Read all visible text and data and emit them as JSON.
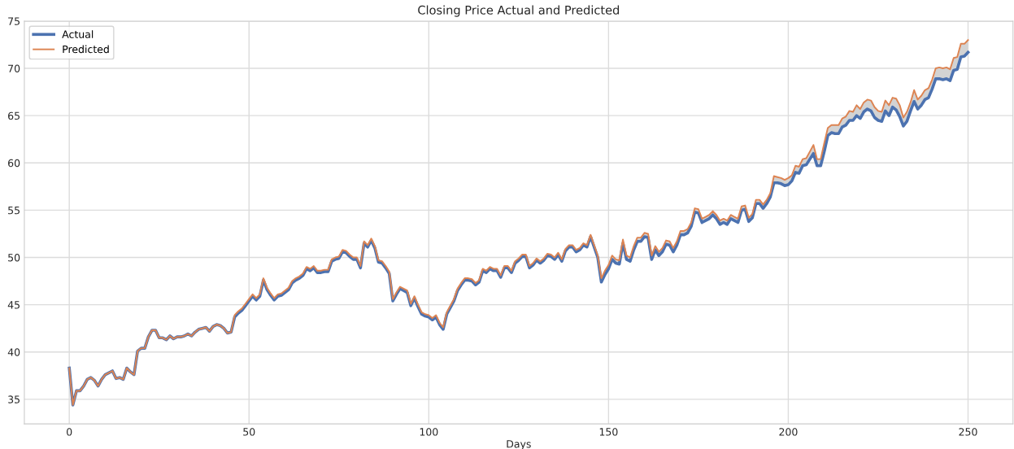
{
  "chart_data": {
    "type": "line",
    "title": "Closing Price Actual and Predicted",
    "xlabel": "Days",
    "x": [
      0,
      1,
      2,
      3,
      4,
      5,
      6,
      7,
      8,
      9,
      10,
      11,
      12,
      13,
      14,
      15,
      16,
      17,
      18,
      19,
      20,
      21,
      22,
      23,
      24,
      25,
      26,
      27,
      28,
      29,
      30,
      31,
      32,
      33,
      34,
      35,
      36,
      37,
      38,
      39,
      40,
      41,
      42,
      43,
      44,
      45,
      46,
      47,
      48,
      49,
      50,
      51,
      52,
      53,
      54,
      55,
      56,
      57,
      58,
      59,
      60,
      61,
      62,
      63,
      64,
      65,
      66,
      67,
      68,
      69,
      70,
      71,
      72,
      73,
      74,
      75,
      76,
      77,
      78,
      79,
      80,
      81,
      82,
      83,
      84,
      85,
      86,
      87,
      88,
      89,
      90,
      91,
      92,
      93,
      94,
      95,
      96,
      97,
      98,
      99,
      100,
      101,
      102,
      103,
      104,
      105,
      106,
      107,
      108,
      109,
      110,
      111,
      112,
      113,
      114,
      115,
      116,
      117,
      118,
      119,
      120,
      121,
      122,
      123,
      124,
      125,
      126,
      127,
      128,
      129,
      130,
      131,
      132,
      133,
      134,
      135,
      136,
      137,
      138,
      139,
      140,
      141,
      142,
      143,
      144,
      145,
      146,
      147,
      148,
      149,
      150,
      151,
      152,
      153,
      154,
      155,
      156,
      157,
      158,
      159,
      160,
      161,
      162,
      163,
      164,
      165,
      166,
      167,
      168,
      169,
      170,
      171,
      172,
      173,
      174,
      175,
      176,
      177,
      178,
      179,
      180,
      181,
      182,
      183,
      184,
      185,
      186,
      187,
      188,
      189,
      190,
      191,
      192,
      193,
      194,
      195,
      196,
      197,
      198,
      199,
      200,
      201,
      202,
      203,
      204,
      205,
      206,
      207,
      208,
      209,
      210,
      211,
      212,
      213,
      214,
      215,
      216,
      217,
      218,
      219,
      220,
      221,
      222,
      223,
      224,
      225,
      226,
      227,
      228,
      229,
      230,
      231,
      232,
      233,
      234,
      235,
      236,
      237,
      238,
      239,
      240,
      241,
      242,
      243,
      244,
      245,
      246,
      247,
      248,
      249,
      250
    ],
    "series": [
      {
        "name": "Actual",
        "color": "#4c72b0",
        "values": [
          38.3,
          34.4,
          35.9,
          35.9,
          36.4,
          37.1,
          37.3,
          37.0,
          36.4,
          37.1,
          37.6,
          37.8,
          38.0,
          37.2,
          37.3,
          37.1,
          38.3,
          37.9,
          37.6,
          40.1,
          40.4,
          40.4,
          41.6,
          42.3,
          42.3,
          41.5,
          41.5,
          41.3,
          41.7,
          41.4,
          41.6,
          41.6,
          41.7,
          41.9,
          41.7,
          42.1,
          42.4,
          42.5,
          42.6,
          42.2,
          42.7,
          42.9,
          42.8,
          42.5,
          42.0,
          42.1,
          43.7,
          44.1,
          44.4,
          44.9,
          45.4,
          45.9,
          45.5,
          45.9,
          47.6,
          46.6,
          46.0,
          45.5,
          45.9,
          46.0,
          46.3,
          46.6,
          47.3,
          47.6,
          47.8,
          48.1,
          48.8,
          48.6,
          48.9,
          48.4,
          48.4,
          48.5,
          48.5,
          49.6,
          49.8,
          49.9,
          50.6,
          50.5,
          50.1,
          49.8,
          49.8,
          48.9,
          51.5,
          51.1,
          51.8,
          51.0,
          49.5,
          49.4,
          48.9,
          48.3,
          45.4,
          46.1,
          46.7,
          46.5,
          46.3,
          44.9,
          45.7,
          44.8,
          44.0,
          43.8,
          43.7,
          43.4,
          43.7,
          42.9,
          42.4,
          44.0,
          44.7,
          45.4,
          46.5,
          47.1,
          47.6,
          47.6,
          47.5,
          47.1,
          47.4,
          48.6,
          48.4,
          48.8,
          48.6,
          48.6,
          47.9,
          48.9,
          48.9,
          48.4,
          49.4,
          49.7,
          50.1,
          50.1,
          48.9,
          49.2,
          49.7,
          49.4,
          49.7,
          50.2,
          50.1,
          49.8,
          50.3,
          49.6,
          50.7,
          51.1,
          51.1,
          50.6,
          50.8,
          51.3,
          51.1,
          52.2,
          51.1,
          50.0,
          47.4,
          48.2,
          48.8,
          49.8,
          49.4,
          49.3,
          51.5,
          49.8,
          49.6,
          50.8,
          51.7,
          51.7,
          52.2,
          52.1,
          49.8,
          50.8,
          50.2,
          50.6,
          51.4,
          51.3,
          50.6,
          51.3,
          52.4,
          52.4,
          52.6,
          53.3,
          54.8,
          54.7,
          53.7,
          53.9,
          54.1,
          54.5,
          54.1,
          53.5,
          53.7,
          53.5,
          54.1,
          53.9,
          53.7,
          55.0,
          55.1,
          53.8,
          54.2,
          55.7,
          55.7,
          55.2,
          55.7,
          56.4,
          57.9,
          57.9,
          57.8,
          57.6,
          57.7,
          58.1,
          59.0,
          58.9,
          59.7,
          59.8,
          60.4,
          61.0,
          59.7,
          59.7,
          61.2,
          62.9,
          63.2,
          63.1,
          63.1,
          63.8,
          64.0,
          64.5,
          64.5,
          65.0,
          64.7,
          65.4,
          65.7,
          65.5,
          64.8,
          64.5,
          64.4,
          65.5,
          65.0,
          65.9,
          65.6,
          64.9,
          63.9,
          64.4,
          65.5,
          66.5,
          65.7,
          66.1,
          66.7,
          66.9,
          67.8,
          68.9,
          68.9,
          68.8,
          68.9,
          68.7,
          69.8,
          69.9,
          71.2,
          71.3,
          71.7
        ]
      },
      {
        "name": "Predicted",
        "color": "#dd8452",
        "values": [
          38.3,
          34.4,
          35.9,
          35.9,
          36.4,
          37.1,
          37.3,
          37.0,
          36.4,
          37.1,
          37.6,
          37.8,
          38.0,
          37.2,
          37.3,
          37.1,
          38.3,
          37.9,
          37.6,
          40.1,
          40.4,
          40.4,
          41.6,
          42.3,
          42.3,
          41.5,
          41.5,
          41.3,
          41.7,
          41.4,
          41.6,
          41.6,
          41.7,
          41.9,
          41.7,
          42.1,
          42.4,
          42.5,
          42.6,
          42.2,
          42.7,
          42.9,
          42.8,
          42.5,
          42.0,
          42.1,
          43.9,
          44.3,
          44.6,
          45.1,
          45.6,
          46.1,
          45.7,
          46.1,
          47.8,
          46.8,
          46.2,
          45.7,
          46.1,
          46.2,
          46.5,
          46.8,
          47.5,
          47.8,
          48.0,
          48.3,
          49.0,
          48.8,
          49.1,
          48.6,
          48.6,
          48.7,
          48.7,
          49.8,
          50.0,
          50.1,
          50.8,
          50.7,
          50.3,
          50.0,
          50.0,
          49.1,
          51.7,
          51.3,
          52.0,
          51.2,
          49.7,
          49.6,
          49.1,
          48.5,
          45.6,
          46.3,
          46.9,
          46.7,
          46.5,
          45.1,
          45.9,
          45.0,
          44.2,
          44.0,
          43.9,
          43.6,
          43.9,
          43.1,
          42.6,
          44.2,
          44.9,
          45.6,
          46.7,
          47.3,
          47.8,
          47.8,
          47.7,
          47.3,
          47.6,
          48.8,
          48.6,
          49.0,
          48.8,
          48.8,
          48.1,
          49.1,
          49.1,
          48.6,
          49.6,
          49.9,
          50.3,
          50.3,
          49.1,
          49.4,
          49.9,
          49.6,
          49.9,
          50.4,
          50.3,
          50.0,
          50.5,
          49.8,
          50.9,
          51.3,
          51.3,
          50.8,
          51.0,
          51.5,
          51.3,
          52.4,
          51.3,
          50.2,
          47.8,
          48.6,
          49.2,
          50.2,
          49.8,
          49.7,
          51.9,
          50.2,
          50.0,
          51.2,
          52.1,
          52.1,
          52.6,
          52.5,
          50.2,
          51.2,
          50.6,
          51.0,
          51.8,
          51.7,
          51.0,
          51.7,
          52.8,
          52.8,
          53.0,
          53.7,
          55.2,
          55.1,
          54.1,
          54.3,
          54.5,
          54.9,
          54.5,
          53.9,
          54.1,
          53.9,
          54.5,
          54.3,
          54.1,
          55.4,
          55.5,
          54.2,
          54.6,
          56.1,
          56.1,
          55.6,
          56.1,
          56.8,
          58.6,
          58.5,
          58.4,
          58.2,
          58.4,
          58.7,
          59.7,
          59.6,
          60.4,
          60.5,
          61.2,
          61.9,
          60.4,
          60.4,
          62.1,
          63.7,
          64.0,
          64.0,
          64.0,
          64.7,
          64.9,
          65.5,
          65.4,
          66.1,
          65.7,
          66.4,
          66.7,
          66.6,
          65.9,
          65.5,
          65.4,
          66.6,
          66.1,
          66.9,
          66.8,
          66.1,
          64.8,
          65.4,
          66.4,
          67.7,
          66.7,
          67.1,
          67.7,
          67.9,
          68.8,
          70.0,
          70.1,
          70.0,
          70.1,
          69.9,
          71.1,
          71.2,
          72.6,
          72.6,
          73.0
        ]
      }
    ],
    "xlim": [
      -12.5,
      262.5
    ],
    "ylim": [
      32.4,
      75.0
    ],
    "xticks": [
      0,
      50,
      100,
      150,
      200,
      250
    ],
    "yticks": [
      35,
      40,
      45,
      50,
      55,
      60,
      65,
      70,
      75
    ],
    "grid": true,
    "legend": "top left",
    "marker": "none",
    "line_style": "solid"
  }
}
